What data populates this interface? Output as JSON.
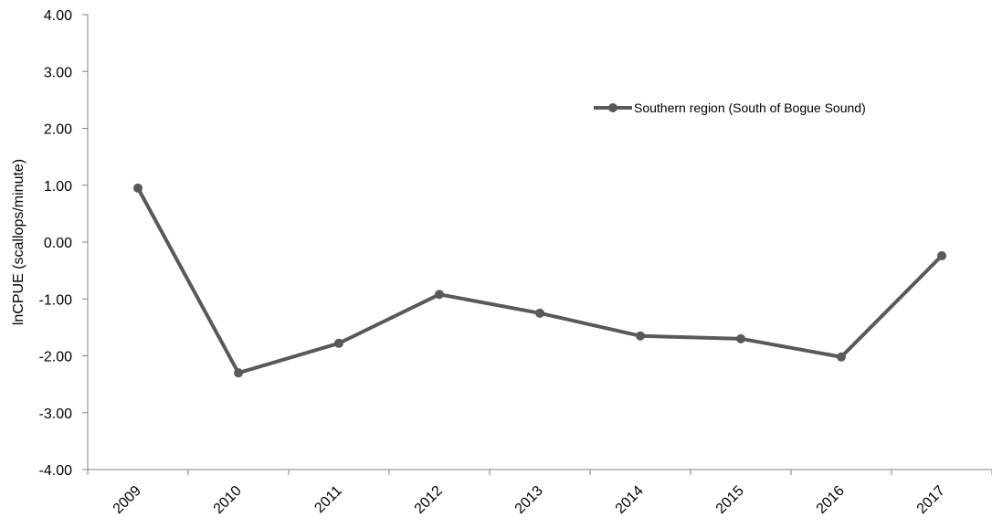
{
  "chart_data": {
    "type": "line",
    "categories": [
      "2009",
      "2010",
      "2011",
      "2012",
      "2013",
      "2014",
      "2015",
      "2016",
      "2017"
    ],
    "series": [
      {
        "name": "Southern region (South of Bogue Sound)",
        "values": [
          0.95,
          -2.3,
          -1.78,
          -0.92,
          -1.25,
          -1.65,
          -1.7,
          -2.02,
          -0.24
        ]
      }
    ],
    "ylabel": "lnCPUE (scallops/minute)",
    "ylim": [
      -4,
      4
    ],
    "yticks": [
      "-4.00",
      "-3.00",
      "-2.00",
      "-1.00",
      "0.00",
      "1.00",
      "2.00",
      "3.00",
      "4.00"
    ],
    "grid": false,
    "legend_position": "top-right",
    "series_color": "#595959"
  }
}
